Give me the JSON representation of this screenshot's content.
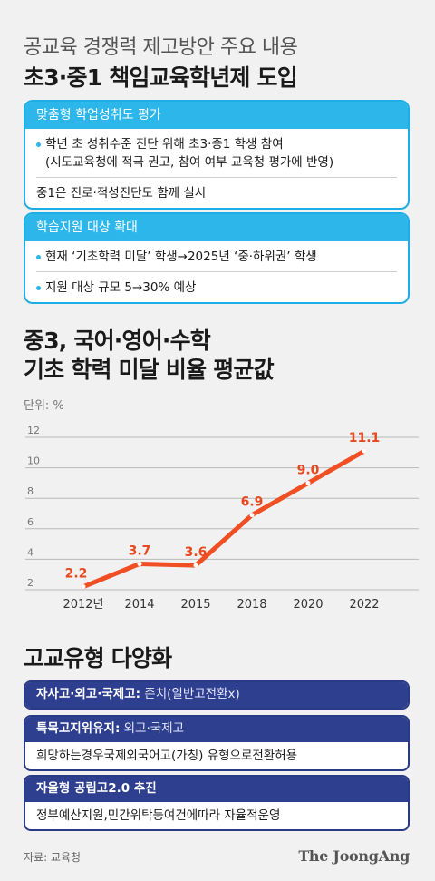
{
  "header": {
    "subtitle": "공교육 경쟁력 제고방안 주요 내용",
    "title": "초3·중1 책임교육학년제 도입"
  },
  "card1": {
    "heading": "맞춤형 학업성취도 평가",
    "item1_line1": "학년 초 성취수준 진단 위해 초3·중1 학생 참여",
    "item1_line2": "(시도교육청에 적극 권고, 참여 여부 교육청 평가에 반영)",
    "item2": "중1은 진로·적성진단도 함께 실시"
  },
  "card2": {
    "heading": "학습지원 대상 확대",
    "item1": "현재 ‘기초학력 미달’ 학생→2025년 ‘중·하위권’ 학생",
    "item2": "지원 대상 규모 5→30% 예상"
  },
  "chart_section": {
    "title_line1": "중3, 국어·영어·수학",
    "title_line2": "기초 학력 미달 비율 평균값",
    "unit": "단위: %"
  },
  "chart_data": {
    "type": "line",
    "title": "중3, 국어·영어·수학 기초 학력 미달 비율 평균값",
    "ylabel": "단위: %",
    "categories": [
      "2012년",
      "2014",
      "2015",
      "2018",
      "2020",
      "2022"
    ],
    "values": [
      2.2,
      3.7,
      3.6,
      6.9,
      9.0,
      11.1
    ],
    "value_labels": [
      "2.2",
      "3.7",
      "3.6",
      "6.9",
      "9.0",
      "11.1"
    ],
    "yticks": [
      "2",
      "4",
      "6",
      "8",
      "10",
      "12"
    ],
    "ylim": [
      2,
      12
    ],
    "grid": true,
    "line_color": "#f04e23",
    "label_color": "#e8491f"
  },
  "section3": {
    "title": "고교유형 다양화",
    "bar1_label": "자사고·외고·국제고:",
    "bar1_value": " 존치(일반고전환x)",
    "bar2_label": "특목고지위유지:",
    "bar2_value": " 외고·국제고",
    "bar2_body": "희망하는경우국제외국어고(가칭) 유형으로전환허용",
    "bar3_label": "자율형 공립고2.0 추진",
    "bar3_body": "정부예산지원,민간위탁등여건에따라 자율적운영"
  },
  "footer": {
    "source": "자료: 교육청",
    "brand": "The JoongAng"
  },
  "colors": {
    "cyan_accent": "#2cb6ea",
    "navy_accent": "#2e3f8f"
  }
}
